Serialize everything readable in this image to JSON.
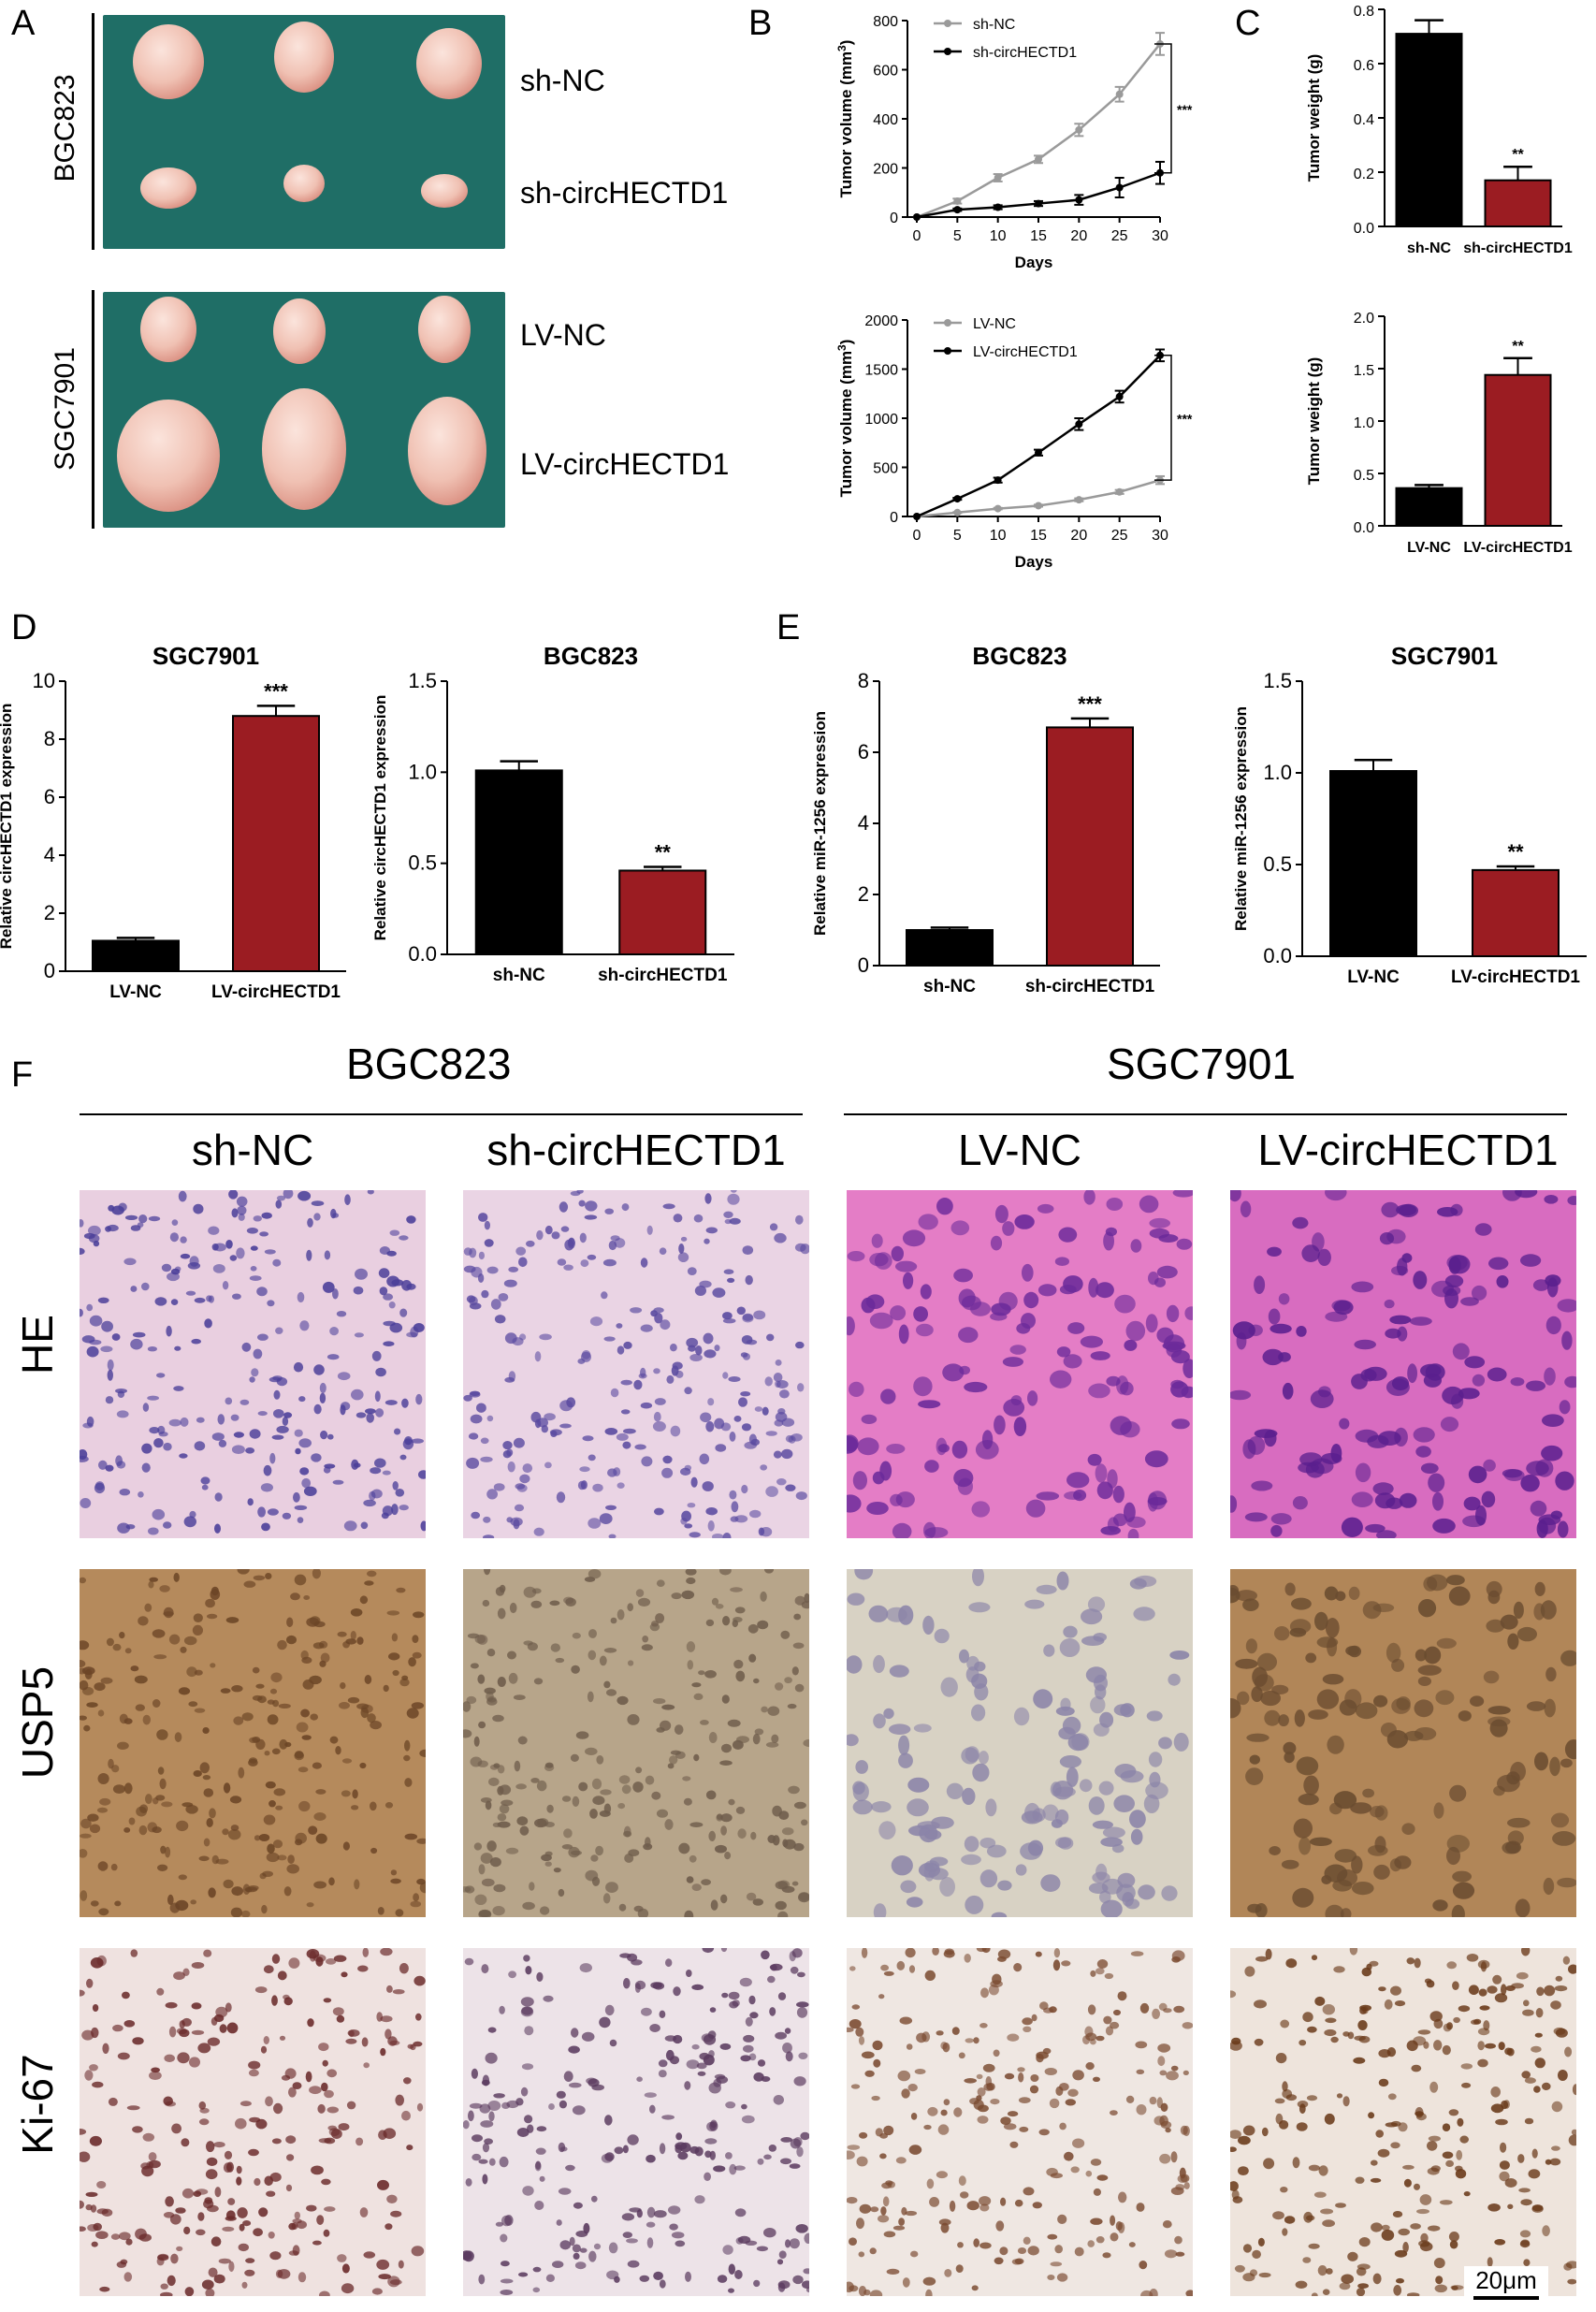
{
  "panel_letters": {
    "a": "A",
    "b": "B",
    "c": "C",
    "d": "D",
    "e": "E",
    "f": "F"
  },
  "panel_a": {
    "top_cell": "BGC823",
    "bottom_cell": "SGC7901",
    "row1": "sh-NC",
    "row2": "sh-circHECTD1",
    "row3": "LV-NC",
    "row4": "LV-circHECTD1"
  },
  "panel_f": {
    "group1": "BGC823",
    "group2": "SGC7901",
    "columns": [
      "sh-NC",
      "sh-circHECTD1",
      "LV-NC",
      "LV-circHECTD1"
    ],
    "rows": [
      "HE",
      "USP5",
      "Ki-67"
    ],
    "scale_bar": "20μm"
  },
  "colors": {
    "black": "#000000",
    "red": "#9b1c22",
    "gray": "#9a9a9a",
    "dish": "#1f6e66"
  },
  "chart_data": [
    {
      "id": "b1",
      "type": "line",
      "xlabel": "Days",
      "ylabel": "Tumor volume (mm3)",
      "x": [
        0,
        5,
        10,
        15,
        20,
        25,
        30
      ],
      "xticks": [
        "0",
        "5",
        "10",
        "15",
        "20",
        "25",
        "30"
      ],
      "ylim": [
        0,
        800
      ],
      "yticks": [
        "0",
        "200",
        "400",
        "600",
        "800"
      ],
      "series": [
        {
          "name": "sh-NC",
          "color": "#9a9a9a",
          "values": [
            0,
            65,
            160,
            235,
            355,
            500,
            705
          ],
          "err": [
            0,
            10,
            15,
            15,
            25,
            30,
            45
          ]
        },
        {
          "name": "sh-circHECTD1",
          "color": "#000000",
          "values": [
            0,
            30,
            40,
            55,
            70,
            120,
            180
          ],
          "err": [
            0,
            5,
            8,
            10,
            20,
            40,
            45
          ]
        }
      ],
      "annotation": "***"
    },
    {
      "id": "b2",
      "type": "line",
      "xlabel": "Days",
      "ylabel": "Tumor volume (mm3)",
      "x": [
        0,
        5,
        10,
        15,
        20,
        25,
        30
      ],
      "xticks": [
        "0",
        "5",
        "10",
        "15",
        "20",
        "25",
        "30"
      ],
      "ylim": [
        0,
        2000
      ],
      "yticks": [
        "0",
        "500",
        "1000",
        "1500",
        "2000"
      ],
      "series": [
        {
          "name": "LV-NC",
          "color": "#9a9a9a",
          "values": [
            0,
            40,
            80,
            110,
            170,
            250,
            370
          ],
          "err": [
            0,
            5,
            8,
            10,
            15,
            20,
            40
          ]
        },
        {
          "name": "LV-circHECTD1",
          "color": "#000000",
          "values": [
            0,
            180,
            370,
            650,
            940,
            1220,
            1640
          ],
          "err": [
            0,
            10,
            25,
            30,
            60,
            60,
            60
          ]
        }
      ],
      "annotation": "***"
    },
    {
      "id": "c1",
      "type": "bar",
      "ylabel": "Tumor weight (g)",
      "categories": [
        "sh-NC",
        "sh-circHECTD1"
      ],
      "values": [
        0.71,
        0.17
      ],
      "err": [
        0.05,
        0.05
      ],
      "colors": [
        "#000000",
        "#9b1c22"
      ],
      "ylim": [
        0,
        0.8
      ],
      "yticks": [
        "0.0",
        "0.2",
        "0.4",
        "0.6",
        "0.8"
      ],
      "sig": [
        "",
        "**"
      ]
    },
    {
      "id": "c2",
      "type": "bar",
      "ylabel": "Tumor weight (g)",
      "categories": [
        "LV-NC",
        "LV-circHECTD1"
      ],
      "values": [
        0.36,
        1.44
      ],
      "err": [
        0.03,
        0.16
      ],
      "colors": [
        "#000000",
        "#9b1c22"
      ],
      "ylim": [
        0,
        2.0
      ],
      "yticks": [
        "0.0",
        "0.5",
        "1.0",
        "1.5",
        "2.0"
      ],
      "sig": [
        "",
        "**"
      ]
    },
    {
      "id": "d1",
      "type": "bar",
      "title": "SGC7901",
      "ylabel": "Relative circHECTD1 expression",
      "categories": [
        "LV-NC",
        "LV-circHECTD1"
      ],
      "values": [
        1.05,
        8.8
      ],
      "err": [
        0.1,
        0.35
      ],
      "colors": [
        "#000000",
        "#9b1c22"
      ],
      "ylim": [
        0,
        10
      ],
      "yticks": [
        "0",
        "2",
        "4",
        "6",
        "8",
        "10"
      ],
      "sig": [
        "",
        "***"
      ]
    },
    {
      "id": "d2",
      "type": "bar",
      "title": "BGC823",
      "ylabel": "Relative circHECTD1 expression",
      "categories": [
        "sh-NC",
        "sh-circHECTD1"
      ],
      "values": [
        1.01,
        0.46
      ],
      "err": [
        0.05,
        0.02
      ],
      "colors": [
        "#000000",
        "#9b1c22"
      ],
      "ylim": [
        0,
        1.5
      ],
      "yticks": [
        "0.0",
        "0.5",
        "1.0",
        "1.5"
      ],
      "sig": [
        "",
        "**"
      ]
    },
    {
      "id": "e1",
      "type": "bar",
      "title": "BGC823",
      "ylabel": "Relative miR-1256 expression",
      "categories": [
        "sh-NC",
        "sh-circHECTD1"
      ],
      "values": [
        1.0,
        6.7
      ],
      "err": [
        0.07,
        0.25
      ],
      "colors": [
        "#000000",
        "#9b1c22"
      ],
      "ylim": [
        0,
        8
      ],
      "yticks": [
        "0",
        "2",
        "4",
        "6",
        "8"
      ],
      "sig": [
        "",
        "***"
      ]
    },
    {
      "id": "e2",
      "type": "bar",
      "title": "SGC7901",
      "ylabel": "Relative miR-1256 expression",
      "categories": [
        "LV-NC",
        "LV-circHECTD1"
      ],
      "values": [
        1.01,
        0.47
      ],
      "err": [
        0.06,
        0.02
      ],
      "colors": [
        "#000000",
        "#9b1c22"
      ],
      "ylim": [
        0,
        1.5
      ],
      "yticks": [
        "0.0",
        "0.5",
        "1.0",
        "1.5"
      ],
      "sig": [
        "",
        "**"
      ]
    }
  ]
}
